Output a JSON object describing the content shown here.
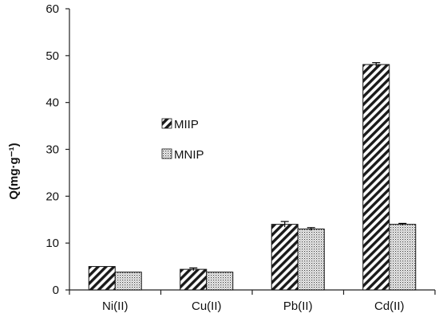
{
  "chart_data": {
    "type": "bar",
    "title": "",
    "xlabel": "",
    "ylabel": "Q(mg·g⁻¹)",
    "categories": [
      "Ni(II)",
      "Cu(II)",
      "Pb(II)",
      "Cd(II)"
    ],
    "ylim": [
      0,
      60
    ],
    "yticks": [
      0,
      10,
      20,
      30,
      40,
      50,
      60
    ],
    "grid": false,
    "legend_position": "center-left",
    "error_bars": true,
    "series": [
      {
        "name": "MIIP",
        "pattern": "diagonal-hatch",
        "values": [
          5.0,
          4.4,
          14.0,
          48.1
        ],
        "errors": [
          0.0,
          0.3,
          0.6,
          0.4
        ]
      },
      {
        "name": "MNIP",
        "pattern": "dots",
        "values": [
          3.8,
          3.8,
          13.0,
          14.0
        ],
        "errors": [
          0.0,
          0.0,
          0.3,
          0.2
        ]
      }
    ]
  }
}
